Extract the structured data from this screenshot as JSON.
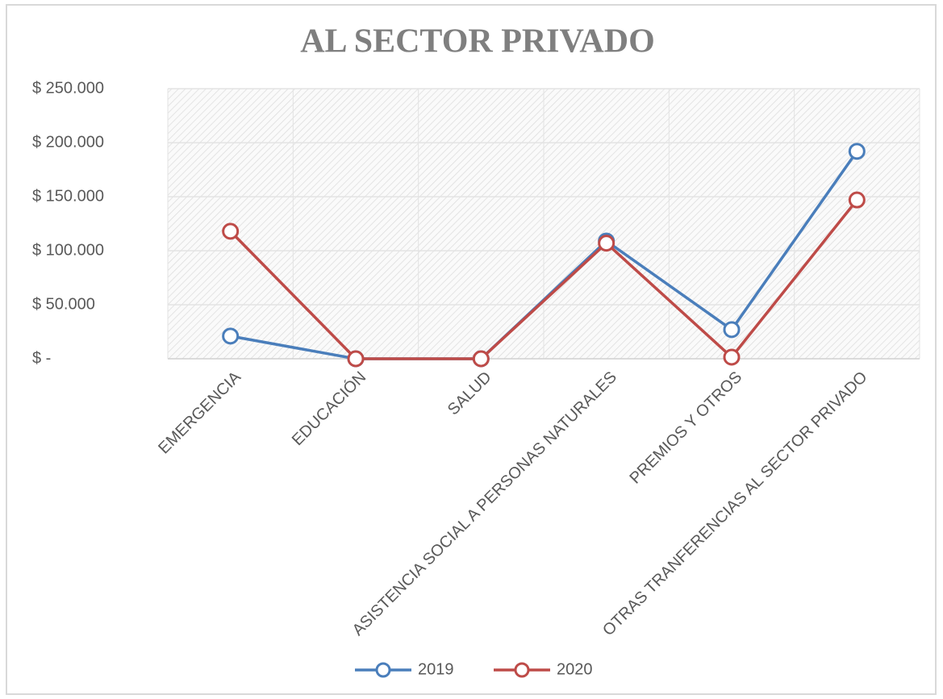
{
  "chart_data": {
    "type": "line",
    "title": "AL SECTOR PRIVADO",
    "categories": [
      "EMERGENCIA",
      "EDUCACIÓN",
      "SALUD",
      "ASISTENCIA SOCIAL A PERSONAS NATURALES",
      "PREMIOS Y OTROS",
      "OTRAS TRANFERENCIAS AL SECTOR PRIVADO"
    ],
    "series": [
      {
        "name": "2019",
        "color": "#4a7ebb",
        "values": [
          21000,
          0,
          0,
          109000,
          27000,
          192000
        ]
      },
      {
        "name": "2020",
        "color": "#be4b48",
        "values": [
          118000,
          0,
          0,
          107000,
          1500,
          147000
        ]
      }
    ],
    "ylim": [
      0,
      250000
    ],
    "yticks": [
      {
        "value": 0,
        "label": "$ -"
      },
      {
        "value": 50000,
        "label": "$ 50.000"
      },
      {
        "value": 100000,
        "label": "$ 100.000"
      },
      {
        "value": 150000,
        "label": "$ 150.000"
      },
      {
        "value": 200000,
        "label": "$ 200.000"
      },
      {
        "value": 250000,
        "label": "$ 250.000"
      }
    ],
    "grid": true,
    "legend": "bottom"
  }
}
